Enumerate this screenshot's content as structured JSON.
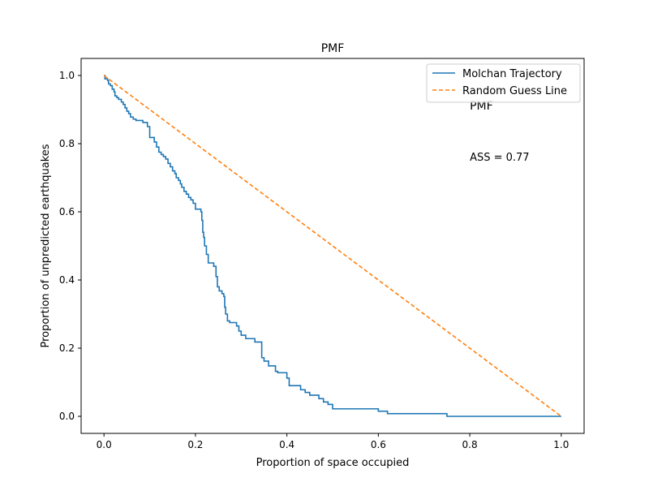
{
  "chart_data": {
    "type": "line",
    "title": "PMF",
    "xlabel": "Proportion of space occupied",
    "ylabel": "Proportion of unpredicted earthquakes",
    "xlim": [
      -0.05,
      1.05
    ],
    "ylim": [
      -0.05,
      1.05
    ],
    "x_ticks": [
      0.0,
      0.2,
      0.4,
      0.6,
      0.8,
      1.0
    ],
    "y_ticks": [
      0.0,
      0.2,
      0.4,
      0.6,
      0.8,
      1.0
    ],
    "x_tick_labels": [
      "0.0",
      "0.2",
      "0.4",
      "0.6",
      "0.8",
      "1.0"
    ],
    "y_tick_labels": [
      "0.0",
      "0.2",
      "0.4",
      "0.6",
      "0.8",
      "1.0"
    ],
    "grid": false,
    "legend_position": "top-right",
    "series": [
      {
        "name": "Molchan Trajectory",
        "color": "#1f77b4",
        "style": "solid-step",
        "points": [
          [
            0.0,
            1.0
          ],
          [
            0.002,
            0.99
          ],
          [
            0.008,
            0.985
          ],
          [
            0.01,
            0.975
          ],
          [
            0.014,
            0.97
          ],
          [
            0.018,
            0.96
          ],
          [
            0.022,
            0.952
          ],
          [
            0.024,
            0.94
          ],
          [
            0.028,
            0.935
          ],
          [
            0.032,
            0.93
          ],
          [
            0.038,
            0.922
          ],
          [
            0.042,
            0.915
          ],
          [
            0.046,
            0.905
          ],
          [
            0.05,
            0.895
          ],
          [
            0.054,
            0.888
          ],
          [
            0.058,
            0.878
          ],
          [
            0.064,
            0.872
          ],
          [
            0.07,
            0.868
          ],
          [
            0.085,
            0.862
          ],
          [
            0.095,
            0.85
          ],
          [
            0.1,
            0.818
          ],
          [
            0.11,
            0.805
          ],
          [
            0.115,
            0.79
          ],
          [
            0.12,
            0.775
          ],
          [
            0.125,
            0.768
          ],
          [
            0.13,
            0.762
          ],
          [
            0.135,
            0.755
          ],
          [
            0.14,
            0.742
          ],
          [
            0.145,
            0.732
          ],
          [
            0.15,
            0.72
          ],
          [
            0.155,
            0.712
          ],
          [
            0.158,
            0.7
          ],
          [
            0.163,
            0.692
          ],
          [
            0.167,
            0.682
          ],
          [
            0.17,
            0.672
          ],
          [
            0.175,
            0.66
          ],
          [
            0.18,
            0.652
          ],
          [
            0.185,
            0.642
          ],
          [
            0.19,
            0.635
          ],
          [
            0.195,
            0.625
          ],
          [
            0.2,
            0.608
          ],
          [
            0.212,
            0.6
          ],
          [
            0.214,
            0.575
          ],
          [
            0.216,
            0.54
          ],
          [
            0.218,
            0.525
          ],
          [
            0.22,
            0.5
          ],
          [
            0.224,
            0.475
          ],
          [
            0.228,
            0.45
          ],
          [
            0.24,
            0.44
          ],
          [
            0.245,
            0.41
          ],
          [
            0.248,
            0.38
          ],
          [
            0.252,
            0.368
          ],
          [
            0.258,
            0.36
          ],
          [
            0.262,
            0.352
          ],
          [
            0.264,
            0.32
          ],
          [
            0.266,
            0.3
          ],
          [
            0.27,
            0.28
          ],
          [
            0.275,
            0.275
          ],
          [
            0.29,
            0.265
          ],
          [
            0.295,
            0.25
          ],
          [
            0.3,
            0.238
          ],
          [
            0.31,
            0.228
          ],
          [
            0.33,
            0.218
          ],
          [
            0.345,
            0.172
          ],
          [
            0.35,
            0.162
          ],
          [
            0.36,
            0.148
          ],
          [
            0.375,
            0.132
          ],
          [
            0.38,
            0.128
          ],
          [
            0.4,
            0.112
          ],
          [
            0.405,
            0.09
          ],
          [
            0.43,
            0.078
          ],
          [
            0.44,
            0.07
          ],
          [
            0.45,
            0.062
          ],
          [
            0.47,
            0.052
          ],
          [
            0.48,
            0.042
          ],
          [
            0.49,
            0.035
          ],
          [
            0.5,
            0.022
          ],
          [
            0.6,
            0.015
          ],
          [
            0.62,
            0.008
          ],
          [
            0.75,
            0.0
          ],
          [
            1.0,
            0.0
          ]
        ]
      },
      {
        "name": "Random Guess Line",
        "color": "#ff7f0e",
        "style": "dashed",
        "points": [
          [
            0.0,
            1.0
          ],
          [
            1.0,
            0.0
          ]
        ]
      }
    ],
    "annotations": [
      {
        "text": "PMF",
        "x": 0.8,
        "y": 0.91
      },
      {
        "text": "ASS = 0.77",
        "x": 0.8,
        "y": 0.76
      }
    ]
  }
}
